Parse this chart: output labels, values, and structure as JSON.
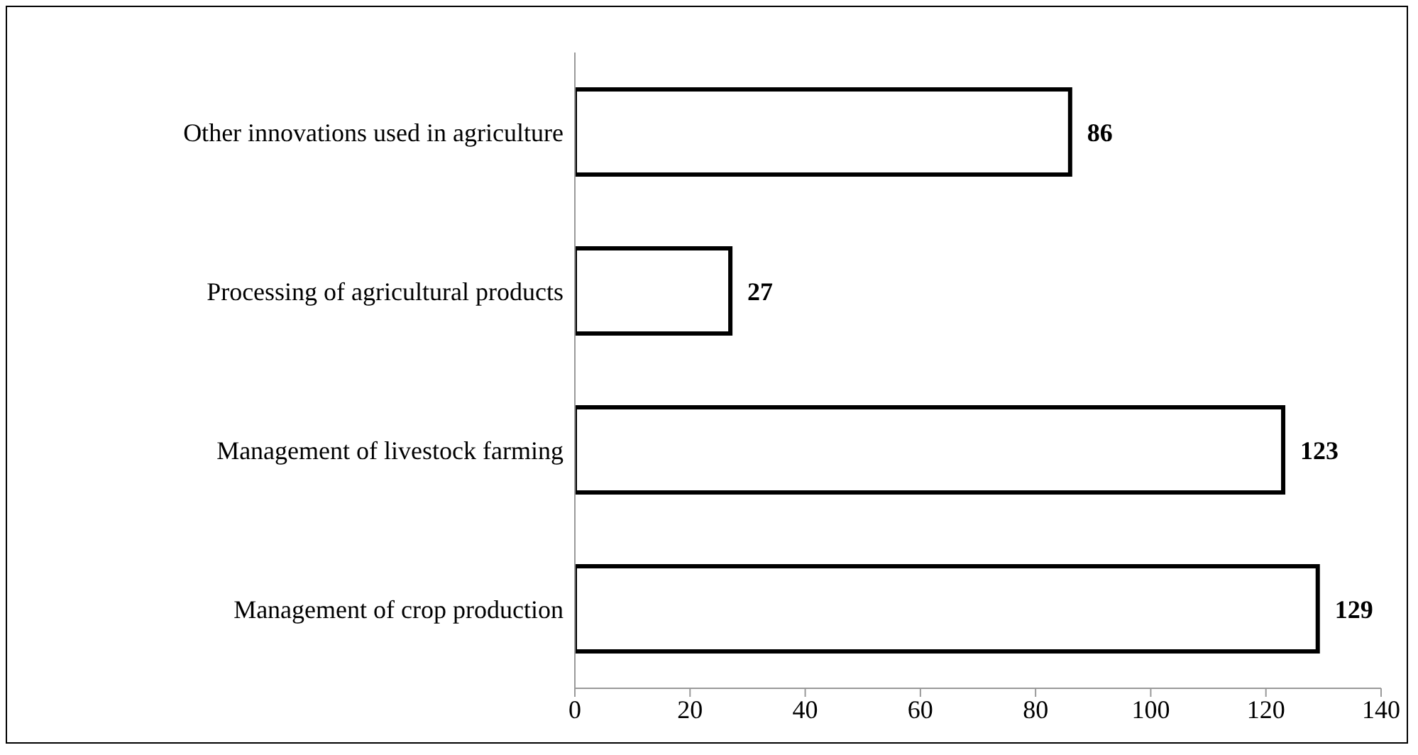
{
  "chart_data": {
    "type": "bar",
    "orientation": "horizontal",
    "categories": [
      "Other innovations used in agriculture",
      "Processing of agricultural products",
      "Management of livestock farming",
      "Management of crop production"
    ],
    "values": [
      86,
      27,
      123,
      129
    ],
    "color": "#ffffff",
    "xlim": [
      0,
      140
    ],
    "xticks": [
      0,
      20,
      40,
      60,
      80,
      100,
      120,
      140
    ],
    "data_labels": true
  }
}
